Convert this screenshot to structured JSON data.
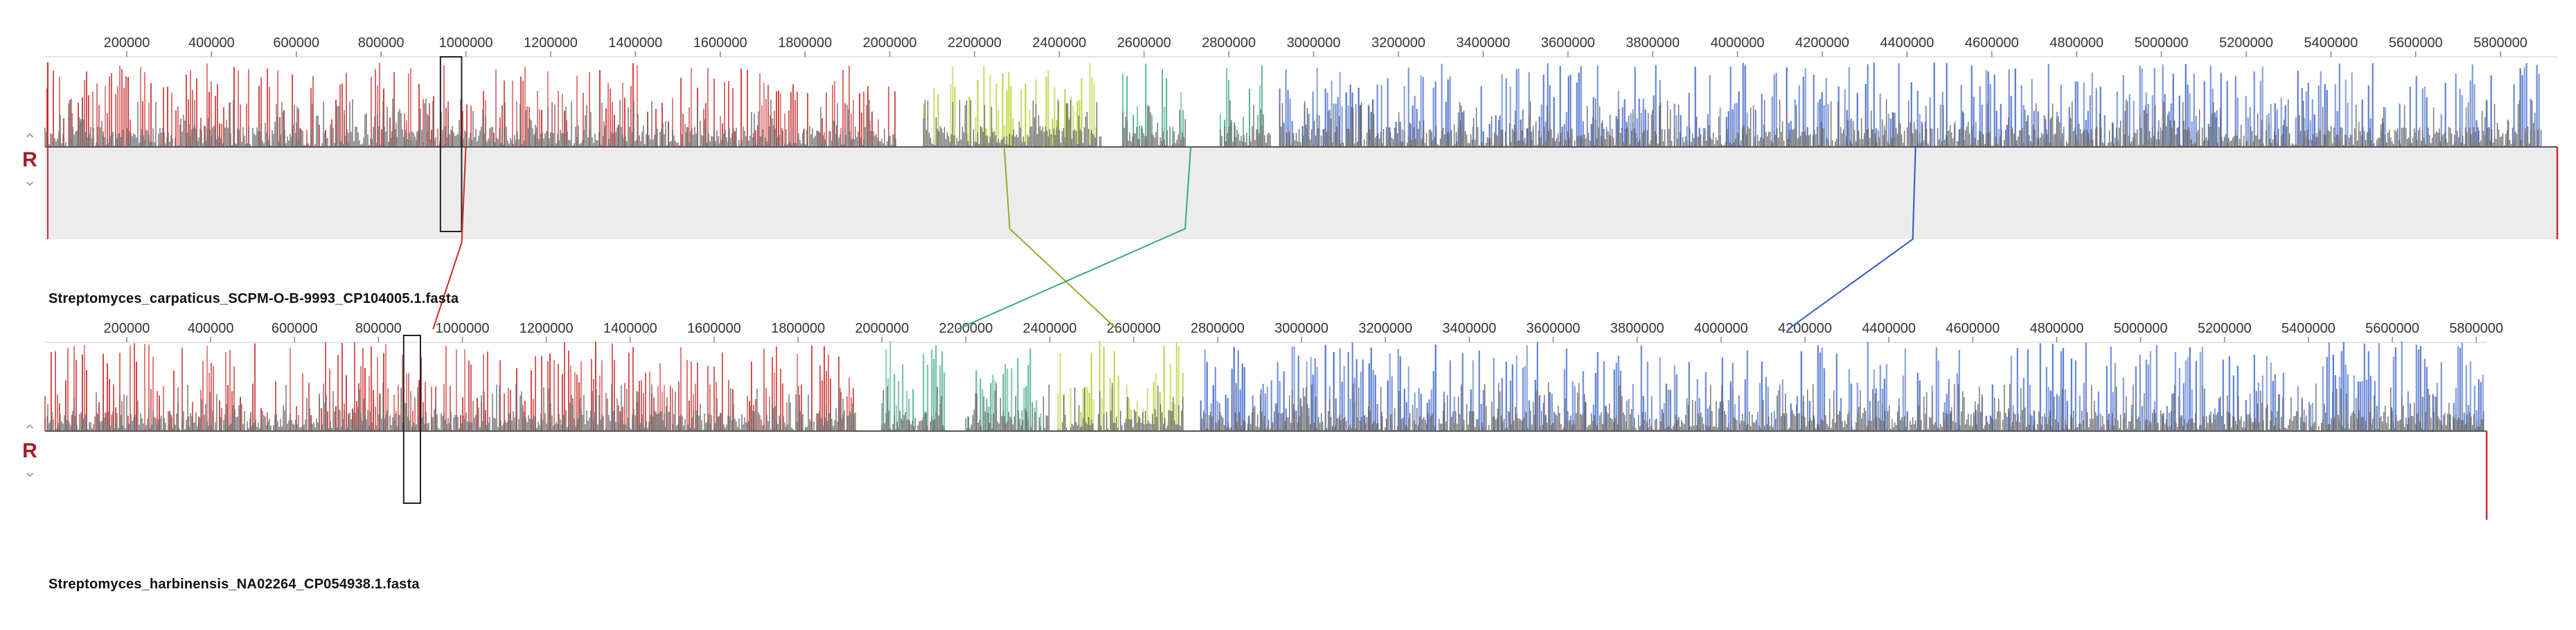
{
  "viewer": {
    "title": "",
    "axis_max": 5900000,
    "tick_values": [
      200000,
      400000,
      600000,
      800000,
      1000000,
      1200000,
      1400000,
      1600000,
      1800000,
      2000000,
      2200000,
      2400000,
      2600000,
      2800000,
      3000000,
      3200000,
      3400000,
      3600000,
      3800000,
      4000000,
      4200000,
      4400000,
      4600000,
      4800000,
      5000000,
      5200000,
      5400000,
      5600000,
      5800000
    ],
    "tracks": [
      {
        "name": "Streptomyces_carpaticus_SCPM-O-B-9993_CP104005.1.fasta",
        "reverse_label": "R",
        "blocks": [
          {
            "start": 0,
            "end": 2020000,
            "color": "#cc2b2b"
          },
          {
            "start": 2080000,
            "end": 2500000,
            "color": "#b5cc1e"
          },
          {
            "start": 2550000,
            "end": 2700000,
            "color": "#3aa884"
          },
          {
            "start": 2780000,
            "end": 2900000,
            "color": "#3aa884"
          },
          {
            "start": 2920000,
            "end": 5900000,
            "color": "#2a56c8"
          }
        ],
        "highlight": {
          "start": 940000,
          "end": 990000
        },
        "end_marker": {
          "position": 5900000,
          "color": "#cc2b2b"
        }
      },
      {
        "name": "Streptomyces_harbinensis_NA02264_CP054938.1.fasta",
        "reverse_label": "R",
        "blocks": [
          {
            "start": 0,
            "end": 1940000,
            "color": "#cc2b2b"
          },
          {
            "start": 2000000,
            "end": 2150000,
            "color": "#3aa884"
          },
          {
            "start": 2200000,
            "end": 2400000,
            "color": "#3aa884"
          },
          {
            "start": 2420000,
            "end": 2720000,
            "color": "#b5cc1e"
          },
          {
            "start": 2760000,
            "end": 5900000,
            "color": "#2a56c8"
          }
        ],
        "highlight": {
          "start": 860000,
          "end": 900000
        },
        "end_marker": {
          "position": 5900000,
          "color": "#cc2b2b"
        }
      }
    ],
    "connections": [
      {
        "color": "#cc2b2b",
        "from": 1000000,
        "to": 930000
      },
      {
        "color": "#9aaa2c",
        "from": 2270000,
        "to": 2560000
      },
      {
        "color": "#3aa884",
        "from": 2710000,
        "to": 2180000
      },
      {
        "color": "#2a56c8",
        "from": 4420000,
        "to": 4160000
      }
    ]
  }
}
